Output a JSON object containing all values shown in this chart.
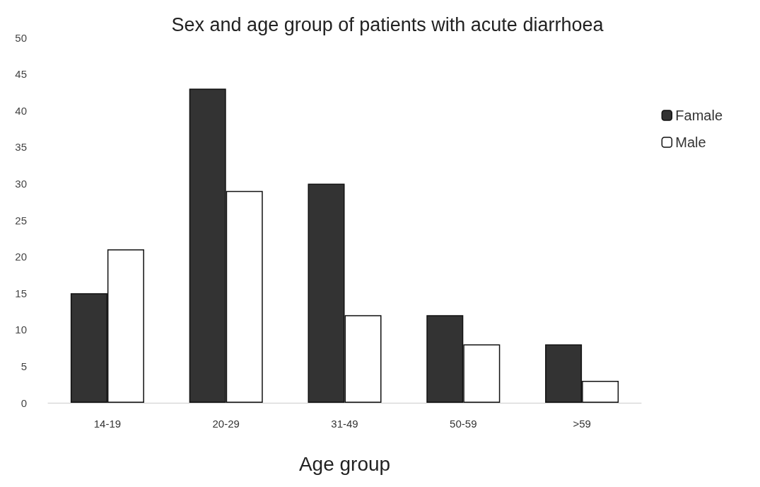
{
  "chart_data": {
    "type": "bar",
    "title": "Sex and age group of patients with acute diarrhoea",
    "xlabel": "Age group",
    "categories": [
      "14-19",
      "20-29",
      "31-49",
      "50-59",
      ">59"
    ],
    "series": [
      {
        "name": "Famale",
        "color": "#333333",
        "values": [
          15,
          43,
          30,
          12,
          8
        ]
      },
      {
        "name": "Male",
        "color": "#ffffff",
        "values": [
          21,
          29,
          12,
          8,
          3
        ]
      }
    ],
    "ylim": [
      0,
      50
    ],
    "yticks": [
      0,
      5,
      10,
      15,
      20,
      25,
      30,
      35,
      40,
      45,
      50
    ],
    "grid": false,
    "legend": "right"
  }
}
